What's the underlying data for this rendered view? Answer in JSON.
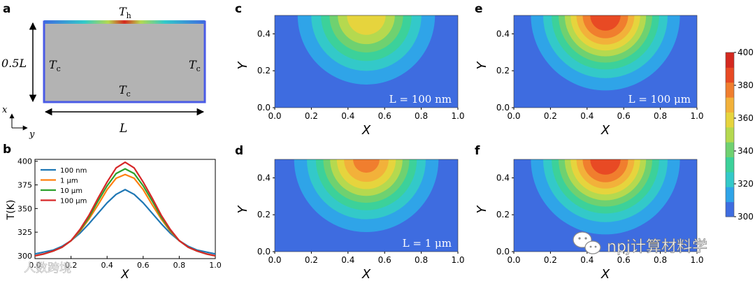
{
  "panel_letters": {
    "a": "a",
    "b": "b",
    "c": "c",
    "d": "d",
    "e": "e",
    "f": "f"
  },
  "schematic": {
    "top_T": "T",
    "top_sub": "h",
    "left_T": "T",
    "left_sub": "c",
    "right_T": "T",
    "right_sub": "c",
    "bottom_T": "T",
    "bottom_sub": "c",
    "height_label": "0.5L",
    "width_label": "L",
    "axis_x": "x",
    "axis_y": "y",
    "colors": {
      "fill": "#b3b3b3",
      "border": "#4a5be6"
    }
  },
  "contour_axes": {
    "x_ticks": [
      "0.0",
      "0.2",
      "0.4",
      "0.6",
      "0.8",
      "1.0"
    ],
    "y_ticks": [
      "0.0",
      "0.2",
      "0.4"
    ],
    "xlabel": "X",
    "ylabel": "Y"
  },
  "contour_panels": {
    "c": {
      "label": "L = 100 nm",
      "peak": 370
    },
    "d": {
      "label": "L = 1 μm",
      "peak": 386
    },
    "e": {
      "label": "L = 100 μm",
      "peak": 399
    },
    "f": {
      "label": "",
      "peak": 399
    }
  },
  "colorbar": {
    "ticks": [
      "300",
      "320",
      "340",
      "360",
      "380",
      "400"
    ],
    "min": 300,
    "max": 400,
    "colors": [
      "#3e6ce0",
      "#2fa4e8",
      "#33c9c9",
      "#3cd19a",
      "#6fd170",
      "#b5d94f",
      "#e6d43d",
      "#f2b13a",
      "#f07e2e",
      "#e84a24",
      "#d4291f"
    ]
  },
  "watermarks": {
    "left": "人数跨境",
    "right": "npj计算材料学"
  },
  "chart_data": {
    "type": "line",
    "title": "",
    "xlabel": "X",
    "ylabel": "T(K)",
    "xlim": [
      0.0,
      1.0
    ],
    "ylim": [
      297,
      402
    ],
    "x_ticks": [
      "0.0",
      "0.2",
      "0.4",
      "0.6",
      "0.8",
      "1.0"
    ],
    "y_ticks": [
      "300",
      "325",
      "350",
      "375",
      "400"
    ],
    "legend_position": "top-left",
    "x": [
      0.0,
      0.05,
      0.1,
      0.15,
      0.2,
      0.25,
      0.3,
      0.35,
      0.4,
      0.45,
      0.5,
      0.55,
      0.6,
      0.65,
      0.7,
      0.75,
      0.8,
      0.85,
      0.9,
      0.95,
      1.0
    ],
    "series": [
      {
        "name": "100 nm",
        "color": "#1f77b4",
        "values": [
          302,
          304,
          306,
          310,
          316,
          324,
          334,
          345,
          356,
          365,
          370,
          365,
          356,
          345,
          334,
          324,
          316,
          310,
          306,
          304,
          302
        ]
      },
      {
        "name": "1 μm",
        "color": "#ff7f0e",
        "values": [
          300,
          302,
          305,
          309,
          316,
          326,
          339,
          354,
          370,
          382,
          386,
          382,
          370,
          354,
          339,
          326,
          316,
          309,
          305,
          302,
          300
        ]
      },
      {
        "name": "10 μm",
        "color": "#2ca02c",
        "values": [
          300,
          302,
          305,
          309,
          316,
          327,
          341,
          358,
          374,
          387,
          392,
          387,
          374,
          358,
          341,
          327,
          316,
          309,
          305,
          302,
          300
        ]
      },
      {
        "name": "100 μm",
        "color": "#d62728",
        "values": [
          300,
          302,
          305,
          309,
          316,
          328,
          343,
          361,
          378,
          393,
          399,
          393,
          378,
          361,
          343,
          328,
          316,
          309,
          305,
          302,
          300
        ]
      }
    ]
  }
}
